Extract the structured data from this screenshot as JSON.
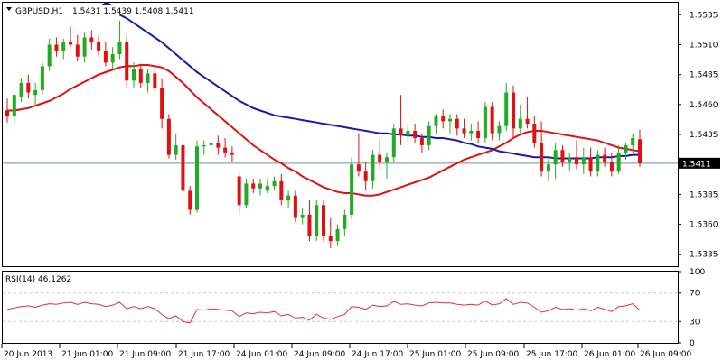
{
  "header": {
    "symbol": "GBPUSD,H1",
    "ohlc": "1.5431 1.5439 1.5408 1.5411"
  },
  "rsi_header": "RSI(14) 46.1262",
  "colors": {
    "bull": "#22aa22",
    "bear": "#e01010",
    "ma_fast": "#e01010",
    "ma_slow": "#1a1aa8",
    "rsi_line": "#dd3333",
    "price_line": "#6f8f8f",
    "frame": "#000000",
    "grid_dash": "#c8c8c8"
  },
  "price_label": "1.5411",
  "chart_data": [
    {
      "type": "candlestick",
      "title": "GBPUSD,H1",
      "ylim": [
        1.5325,
        1.5545
      ],
      "yticks": [
        "1.5535",
        "1.5510",
        "1.5485",
        "1.5460",
        "1.5435",
        "1.5410",
        "1.5385",
        "1.5360",
        "1.5335"
      ],
      "xticks": [
        "20 Jun 2013",
        "21 Jun 01:00",
        "21 Jun 09:00",
        "21 Jun 17:00",
        "24 Jun 01:00",
        "24 Jun 09:00",
        "24 Jun 17:00",
        "25 Jun 01:00",
        "25 Jun 09:00",
        "25 Jun 17:00",
        "26 Jun 01:00",
        "26 Jun 09:00"
      ],
      "current_price": 1.5411,
      "candles": [
        [
          1.5455,
          1.5465,
          1.5445,
          1.545
        ],
        [
          1.545,
          1.547,
          1.5445,
          1.5468
        ],
        [
          1.5466,
          1.5482,
          1.5462,
          1.5478
        ],
        [
          1.5478,
          1.5485,
          1.5465,
          1.547
        ],
        [
          1.5468,
          1.5478,
          1.546,
          1.5472
        ],
        [
          1.5472,
          1.5495,
          1.5468,
          1.5492
        ],
        [
          1.5492,
          1.5515,
          1.5488,
          1.551
        ],
        [
          1.551,
          1.5516,
          1.55,
          1.5505
        ],
        [
          1.5505,
          1.5515,
          1.5498,
          1.5512
        ],
        [
          1.5512,
          1.5525,
          1.5508,
          1.551
        ],
        [
          1.551,
          1.5518,
          1.5496,
          1.55
        ],
        [
          1.55,
          1.552,
          1.5495,
          1.5516
        ],
        [
          1.5516,
          1.5522,
          1.5506,
          1.5512
        ],
        [
          1.5512,
          1.5518,
          1.55,
          1.5505
        ],
        [
          1.5505,
          1.5512,
          1.5492,
          1.5495
        ],
        [
          1.5495,
          1.5508,
          1.549,
          1.5502
        ],
        [
          1.5502,
          1.553,
          1.5498,
          1.5512
        ],
        [
          1.5512,
          1.5518,
          1.5475,
          1.548
        ],
        [
          1.548,
          1.5495,
          1.5474,
          1.549
        ],
        [
          1.549,
          1.5494,
          1.5474,
          1.5478
        ],
        [
          1.5478,
          1.549,
          1.547,
          1.5486
        ],
        [
          1.5486,
          1.5492,
          1.547,
          1.5474
        ],
        [
          1.5474,
          1.5482,
          1.544,
          1.5448
        ],
        [
          1.5448,
          1.5452,
          1.5415,
          1.5418
        ],
        [
          1.5418,
          1.5436,
          1.5414,
          1.5426
        ],
        [
          1.5426,
          1.543,
          1.5375,
          1.5388
        ],
        [
          1.5388,
          1.5392,
          1.5368,
          1.5372
        ],
        [
          1.5372,
          1.543,
          1.537,
          1.5425
        ],
        [
          1.5425,
          1.543,
          1.5418,
          1.5426
        ],
        [
          1.5426,
          1.5452,
          1.5418,
          1.5428
        ],
        [
          1.5428,
          1.5434,
          1.5418,
          1.5424
        ],
        [
          1.5424,
          1.5432,
          1.5416,
          1.542
        ],
        [
          1.542,
          1.5425,
          1.5412,
          1.5418
        ],
        [
          1.54,
          1.5405,
          1.5368,
          1.5376
        ],
        [
          1.5376,
          1.5398,
          1.5374,
          1.5394
        ],
        [
          1.5394,
          1.5398,
          1.5386,
          1.539
        ],
        [
          1.539,
          1.5398,
          1.5384,
          1.5394
        ],
        [
          1.5388,
          1.5398,
          1.5386,
          1.5392
        ],
        [
          1.5392,
          1.54,
          1.5388,
          1.5396
        ],
        [
          1.5396,
          1.5402,
          1.5376,
          1.538
        ],
        [
          1.538,
          1.5388,
          1.5374,
          1.5384
        ],
        [
          1.5384,
          1.5388,
          1.5362,
          1.5366
        ],
        [
          1.5366,
          1.5374,
          1.536,
          1.5368
        ],
        [
          1.5368,
          1.538,
          1.5346,
          1.535
        ],
        [
          1.535,
          1.538,
          1.5346,
          1.5376
        ],
        [
          1.5376,
          1.538,
          1.5346,
          1.535
        ],
        [
          1.535,
          1.5366,
          1.534,
          1.5346
        ],
        [
          1.5346,
          1.536,
          1.5342,
          1.5356
        ],
        [
          1.5356,
          1.5372,
          1.535,
          1.5368
        ],
        [
          1.5368,
          1.5416,
          1.5364,
          1.541
        ],
        [
          1.541,
          1.5435,
          1.54,
          1.5404
        ],
        [
          1.5404,
          1.5412,
          1.5388,
          1.5396
        ],
        [
          1.5396,
          1.5422,
          1.539,
          1.5418
        ],
        [
          1.5418,
          1.5432,
          1.5406,
          1.5412
        ],
        [
          1.5412,
          1.542,
          1.5398,
          1.5416
        ],
        [
          1.5416,
          1.5444,
          1.5412,
          1.544
        ],
        [
          1.544,
          1.5468,
          1.5426,
          1.5434
        ],
        [
          1.5434,
          1.5444,
          1.5428,
          1.5438
        ],
        [
          1.5438,
          1.5444,
          1.5428,
          1.5432
        ],
        [
          1.5432,
          1.5436,
          1.542,
          1.5426
        ],
        [
          1.5426,
          1.5446,
          1.5422,
          1.5442
        ],
        [
          1.5442,
          1.5452,
          1.5436,
          1.545
        ],
        [
          1.545,
          1.5456,
          1.544,
          1.5446
        ],
        [
          1.5446,
          1.5452,
          1.5436,
          1.5448
        ],
        [
          1.5448,
          1.5452,
          1.5434,
          1.544
        ],
        [
          1.544,
          1.5448,
          1.5432,
          1.5436
        ],
        [
          1.5436,
          1.5444,
          1.543,
          1.5438
        ],
        [
          1.5438,
          1.5446,
          1.5428,
          1.5432
        ],
        [
          1.5432,
          1.5462,
          1.5428,
          1.5458
        ],
        [
          1.5458,
          1.5462,
          1.543,
          1.5436
        ],
        [
          1.5436,
          1.5446,
          1.543,
          1.5442
        ],
        [
          1.5442,
          1.5478,
          1.5438,
          1.547
        ],
        [
          1.547,
          1.5476,
          1.5432,
          1.544
        ],
        [
          1.544,
          1.546,
          1.5436,
          1.5448
        ],
        [
          1.5448,
          1.5466,
          1.544,
          1.5444
        ],
        [
          1.5444,
          1.545,
          1.5424,
          1.5428
        ],
        [
          1.5428,
          1.5446,
          1.54,
          1.5404
        ],
        [
          1.5404,
          1.5416,
          1.5396,
          1.541
        ],
        [
          1.541,
          1.5428,
          1.5398,
          1.5422
        ],
        [
          1.5422,
          1.5426,
          1.5408,
          1.5412
        ],
        [
          1.5412,
          1.542,
          1.5404,
          1.5416
        ],
        [
          1.5416,
          1.543,
          1.5406,
          1.541
        ],
        [
          1.541,
          1.5424,
          1.5402,
          1.5416
        ],
        [
          1.5416,
          1.5424,
          1.54,
          1.5404
        ],
        [
          1.5404,
          1.5422,
          1.54,
          1.5418
        ],
        [
          1.5418,
          1.5424,
          1.5408,
          1.5412
        ],
        [
          1.5412,
          1.542,
          1.54,
          1.5404
        ],
        [
          1.5404,
          1.5426,
          1.5402,
          1.542
        ],
        [
          1.542,
          1.5428,
          1.5414,
          1.5426
        ],
        [
          1.5426,
          1.5436,
          1.542,
          1.5432
        ],
        [
          1.5431,
          1.5439,
          1.5408,
          1.5411
        ]
      ],
      "series": [
        {
          "values": [
            1.5455,
            1.5455,
            1.5456,
            1.5457,
            1.5459,
            1.5461,
            1.5463,
            1.5466,
            1.5469,
            1.5473,
            1.5476,
            1.5479,
            1.5482,
            1.5485,
            1.5487,
            1.5489,
            1.5491,
            1.5492,
            1.5492,
            1.5493,
            1.5493,
            1.5492,
            1.5491,
            1.5488,
            1.5483,
            1.5478,
            1.5472,
            1.5466,
            1.5461,
            1.5456,
            1.5451,
            1.5446,
            1.5441,
            1.5436,
            1.5431,
            1.5426,
            1.5422,
            1.5418,
            1.5414,
            1.5411,
            1.5407,
            1.5404,
            1.54,
            1.5397,
            1.5394,
            1.5391,
            1.5389,
            1.5387,
            1.5386,
            1.5386,
            1.5385,
            1.5384,
            1.5384,
            1.5385,
            1.5387,
            1.5389,
            1.5391,
            1.5393,
            1.5395,
            1.5397,
            1.5399,
            1.5402,
            1.5405,
            1.5408,
            1.5411,
            1.5414,
            1.5416,
            1.5418,
            1.542,
            1.5422,
            1.5425,
            1.5428,
            1.5432,
            1.5435,
            1.5437,
            1.5438,
            1.5438,
            1.5437,
            1.5436,
            1.5435,
            1.5434,
            1.5433,
            1.5432,
            1.5431,
            1.543,
            1.5428,
            1.5426,
            1.5424,
            1.5423,
            1.5422,
            1.5421
          ]
        },
        {
          "values": [
            null,
            null,
            null,
            null,
            null,
            null,
            null,
            null,
            null,
            null,
            null,
            null,
            null,
            null,
            null,
            null,
            1.5535,
            1.5532,
            1.5528,
            1.5524,
            1.552,
            1.5516,
            1.5512,
            1.5507,
            1.5502,
            1.5497,
            1.5492,
            1.5487,
            1.5483,
            1.5479,
            1.5475,
            1.5471,
            1.5467,
            1.5463,
            1.546,
            1.5457,
            1.5455,
            1.5453,
            1.5451,
            1.545,
            1.5449,
            1.5448,
            1.5447,
            1.5446,
            1.5445,
            1.5444,
            1.5443,
            1.5442,
            1.5441,
            1.544,
            1.5439,
            1.5438,
            1.5437,
            1.5436,
            1.5436,
            1.5435,
            1.5435,
            1.5434,
            1.5434,
            1.5433,
            1.5433,
            1.5432,
            1.5432,
            1.5431,
            1.543,
            1.5428,
            1.5427,
            1.5425,
            1.5424,
            1.5423,
            1.5421,
            1.542,
            1.5419,
            1.5418,
            1.5417,
            1.5416,
            1.5416,
            1.5416,
            1.5415,
            1.5415,
            1.5415,
            1.5415,
            1.5415,
            1.5415,
            1.5416,
            1.5416,
            1.5416,
            1.5417,
            1.5417,
            1.5418,
            1.5418
          ]
        }
      ]
    },
    {
      "type": "line",
      "title": "RSI(14) 46.1262",
      "ylim": [
        0,
        100
      ],
      "yticks": [
        "100",
        "70",
        "30",
        "0"
      ],
      "series": [
        {
          "values": [
            47,
            49,
            51,
            52,
            50,
            53,
            55,
            54,
            56,
            57,
            54,
            57,
            55,
            54,
            51,
            53,
            57,
            48,
            51,
            48,
            51,
            48,
            40,
            34,
            38,
            30,
            28,
            47,
            46,
            48,
            47,
            46,
            45,
            37,
            42,
            41,
            43,
            42,
            44,
            38,
            40,
            35,
            36,
            32,
            40,
            35,
            33,
            37,
            40,
            51,
            50,
            47,
            53,
            51,
            52,
            58,
            54,
            55,
            53,
            52,
            56,
            57,
            56,
            56,
            54,
            53,
            54,
            53,
            59,
            53,
            55,
            62,
            54,
            57,
            56,
            50,
            43,
            45,
            50,
            47,
            48,
            46,
            48,
            45,
            50,
            47,
            44,
            51,
            52,
            55,
            46
          ]
        }
      ]
    }
  ]
}
